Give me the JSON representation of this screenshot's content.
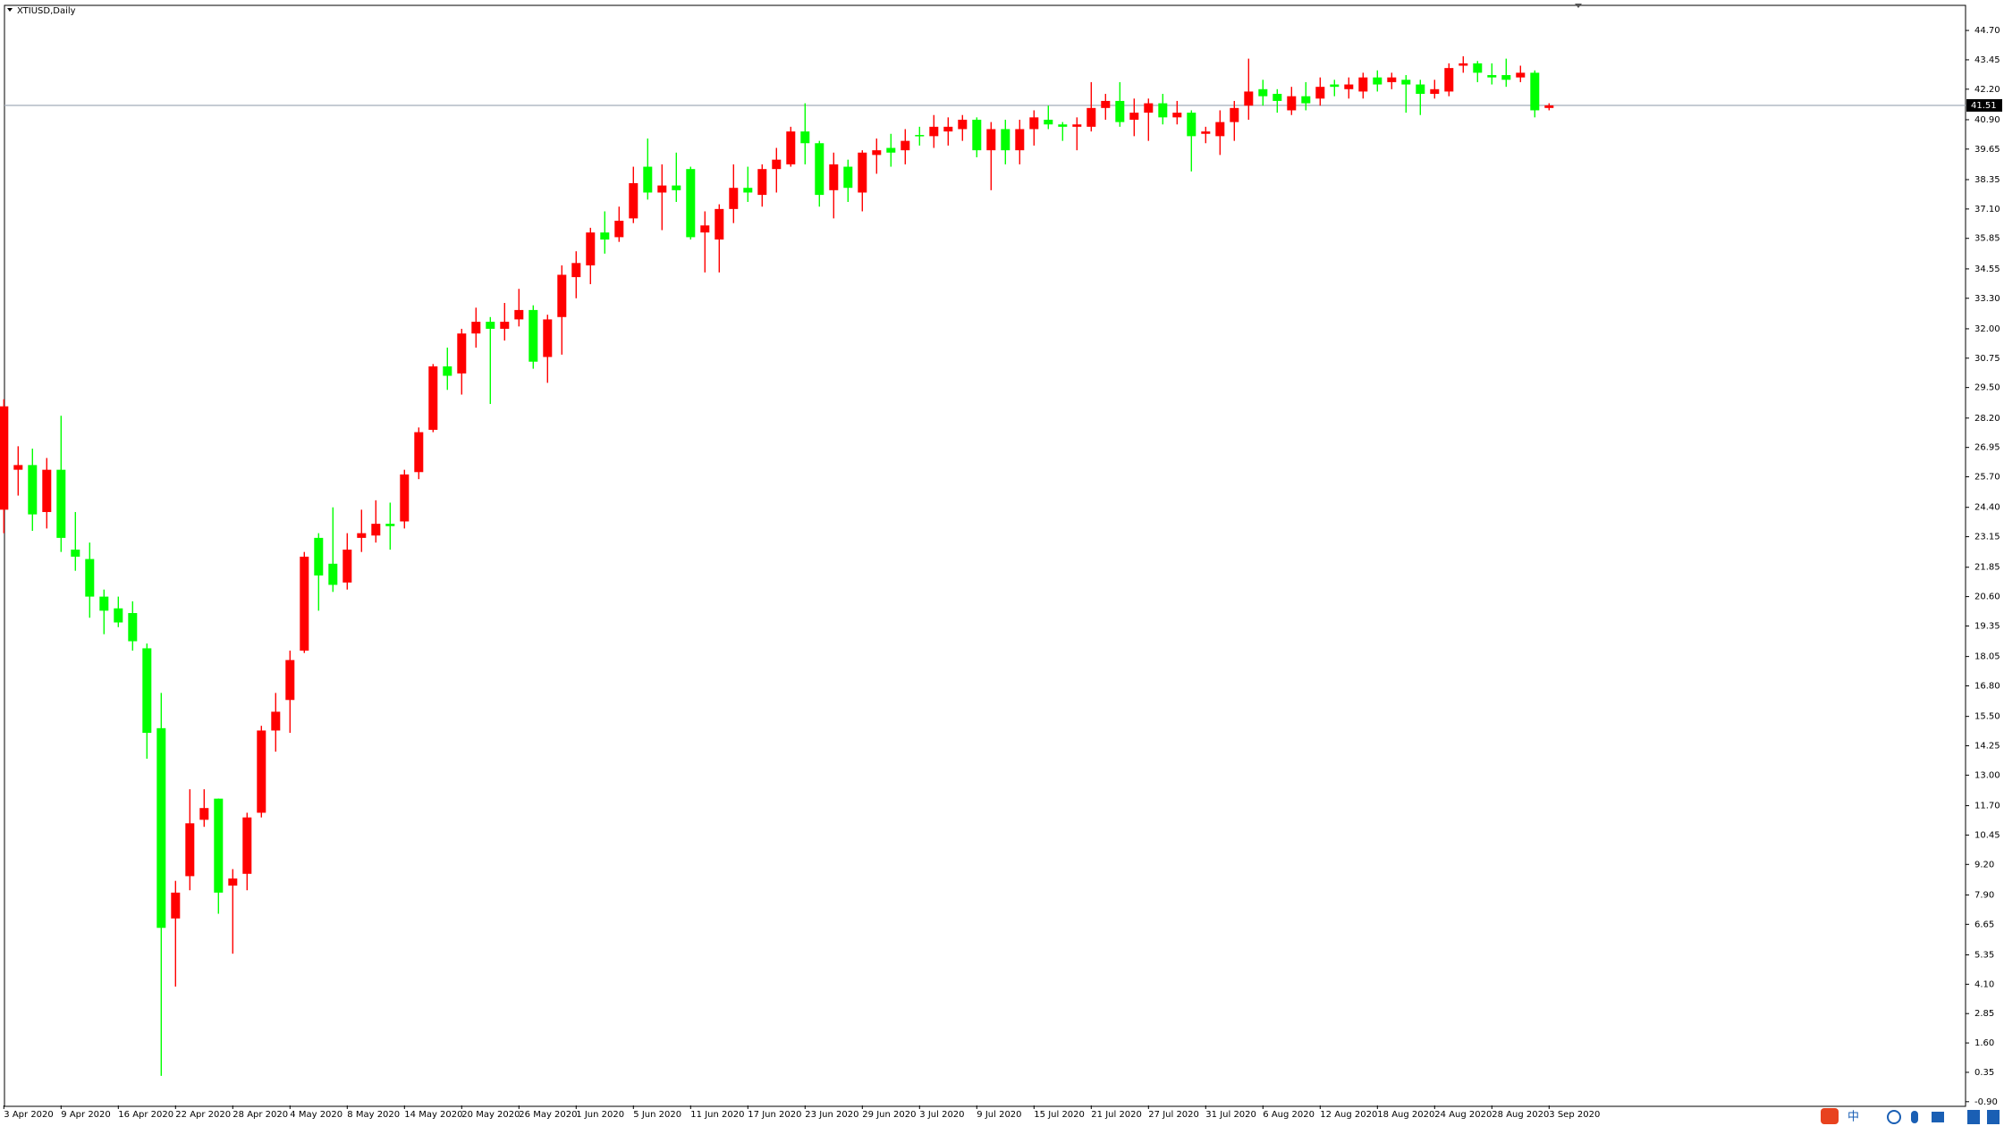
{
  "chart_data": {
    "type": "candlestick",
    "title": "XTIUSD,Daily",
    "categories": [
      "3 Apr 2020",
      null,
      null,
      null,
      "9 Apr 2020",
      null,
      null,
      null,
      "16 Apr 2020",
      null,
      null,
      null,
      "22 Apr 2020",
      null,
      null,
      null,
      "28 Apr 2020",
      null,
      null,
      null,
      "4 May 2020",
      null,
      null,
      null,
      "8 May 2020",
      null,
      null,
      null,
      "14 May 2020",
      null,
      null,
      null,
      "20 May 2020",
      null,
      null,
      null,
      "26 May 2020",
      null,
      null,
      null,
      "1 Jun 2020",
      null,
      null,
      null,
      "5 Jun 2020",
      null,
      null,
      null,
      "11 Jun 2020",
      null,
      null,
      null,
      "17 Jun 2020",
      null,
      null,
      null,
      "23 Jun 2020",
      null,
      null,
      null,
      "29 Jun 2020",
      null,
      null,
      null,
      "3 Jul 2020",
      null,
      null,
      null,
      "9 Jul 2020",
      null,
      null,
      null,
      "15 Jul 2020",
      null,
      null,
      null,
      "21 Jul 2020",
      null,
      null,
      null,
      "27 Jul 2020",
      null,
      null,
      null,
      "31 Jul 2020",
      null,
      null,
      null,
      "6 Aug 2020",
      null,
      null,
      null,
      "12 Aug 2020",
      null,
      null,
      null,
      "18 Aug 2020",
      null,
      null,
      null,
      "24 Aug 2020",
      null,
      null,
      null,
      "28 Aug 2020",
      null,
      null,
      null,
      "3 Sep 2020"
    ],
    "open": [
      24.3,
      26.0,
      26.2,
      24.2,
      26.0,
      22.6,
      22.2,
      20.6,
      20.1,
      19.9,
      18.4,
      15.0,
      6.9,
      8.7,
      11.1,
      12.0,
      8.3,
      8.8,
      11.4,
      14.9,
      16.2,
      18.3,
      23.1,
      22.0,
      21.2,
      23.1,
      23.2,
      23.7,
      23.8,
      25.9,
      27.7,
      30.4,
      30.1,
      31.8,
      32.3,
      32.0,
      32.4,
      32.8,
      30.8,
      32.5,
      34.2,
      34.7,
      36.1,
      35.9,
      36.7,
      38.9,
      37.8,
      38.1,
      38.8,
      36.1,
      35.8,
      37.1,
      38.0,
      37.7,
      38.8,
      39.0,
      40.4,
      39.9,
      37.9,
      38.9,
      37.8,
      39.4,
      39.7,
      39.6,
      40.25,
      40.2,
      40.4,
      40.5,
      40.9,
      39.6,
      40.5,
      39.6,
      40.5,
      40.9,
      40.7,
      40.6,
      40.6,
      41.4,
      41.7,
      40.9,
      41.2,
      41.6,
      41.0,
      41.2,
      40.3,
      40.2,
      40.8,
      41.5,
      42.2,
      42.0,
      41.3,
      41.9,
      41.8,
      42.4,
      42.2,
      42.1,
      42.7,
      42.5,
      42.6,
      42.4,
      42.0,
      42.1,
      43.2,
      43.3,
      42.8,
      42.8,
      42.7,
      42.9,
      41.4
    ],
    "high": [
      29.0,
      27.0,
      26.9,
      26.5,
      28.3,
      24.2,
      22.9,
      20.9,
      20.6,
      20.4,
      18.6,
      16.5,
      8.5,
      12.4,
      12.4,
      12.0,
      9.0,
      11.4,
      15.1,
      16.5,
      18.3,
      22.5,
      23.3,
      24.4,
      23.3,
      24.3,
      24.7,
      24.6,
      26.0,
      27.8,
      30.5,
      31.2,
      32.0,
      32.9,
      32.5,
      33.1,
      33.7,
      33.0,
      32.6,
      34.7,
      35.3,
      36.3,
      37.0,
      37.2,
      38.9,
      40.1,
      39.0,
      39.5,
      38.9,
      37.0,
      37.3,
      39.0,
      38.9,
      39.0,
      39.7,
      40.6,
      41.6,
      40.0,
      39.5,
      39.2,
      39.6,
      40.1,
      40.3,
      40.5,
      40.6,
      41.1,
      41.0,
      41.1,
      41.0,
      40.8,
      40.9,
      40.9,
      41.3,
      41.5,
      40.8,
      41.0,
      42.5,
      42.0,
      42.5,
      41.8,
      41.8,
      42.0,
      41.7,
      41.3,
      40.6,
      41.3,
      41.7,
      43.5,
      42.6,
      42.2,
      42.3,
      42.5,
      42.7,
      42.6,
      42.7,
      42.9,
      43.0,
      42.9,
      42.8,
      42.6,
      42.6,
      43.3,
      43.6,
      43.4,
      43.3,
      43.5,
      43.2,
      43.0,
      41.6
    ],
    "low": [
      23.3,
      24.9,
      23.4,
      23.5,
      22.5,
      21.7,
      19.7,
      19.0,
      19.3,
      18.3,
      13.7,
      0.2,
      4.0,
      8.1,
      10.8,
      7.1,
      5.4,
      8.1,
      11.2,
      14.0,
      14.8,
      18.2,
      20.0,
      20.8,
      20.9,
      22.5,
      22.9,
      22.6,
      23.5,
      25.6,
      27.6,
      29.4,
      29.2,
      31.2,
      28.8,
      31.5,
      32.1,
      30.3,
      29.7,
      30.9,
      33.3,
      33.9,
      35.2,
      35.7,
      36.5,
      37.5,
      36.2,
      37.4,
      35.8,
      34.4,
      34.4,
      36.5,
      37.4,
      37.2,
      37.8,
      38.9,
      39.0,
      37.2,
      36.7,
      37.4,
      37.0,
      38.6,
      38.9,
      39.0,
      39.8,
      39.7,
      39.8,
      40.0,
      39.3,
      37.9,
      39.0,
      39.0,
      39.8,
      40.5,
      40.0,
      39.6,
      40.4,
      40.9,
      40.6,
      40.2,
      40.0,
      40.7,
      40.7,
      38.7,
      39.9,
      39.4,
      40.0,
      40.9,
      41.5,
      41.2,
      41.1,
      41.3,
      41.5,
      41.9,
      41.8,
      41.8,
      42.1,
      42.2,
      41.2,
      41.1,
      41.8,
      41.9,
      42.9,
      42.5,
      42.4,
      42.3,
      42.5,
      41.0,
      41.3
    ],
    "close": [
      28.7,
      26.2,
      24.1,
      26.0,
      23.1,
      22.3,
      20.6,
      20.0,
      19.5,
      18.7,
      14.8,
      6.5,
      8.0,
      10.95,
      11.6,
      8.0,
      8.6,
      11.2,
      14.9,
      15.7,
      17.9,
      22.3,
      21.5,
      21.1,
      22.6,
      23.3,
      23.7,
      23.6,
      25.8,
      27.6,
      30.4,
      30.0,
      31.8,
      32.3,
      32.0,
      32.3,
      32.8,
      30.6,
      32.4,
      34.3,
      34.8,
      36.1,
      35.8,
      36.6,
      38.2,
      37.8,
      38.1,
      37.9,
      35.9,
      36.4,
      37.1,
      38.0,
      37.8,
      38.8,
      39.2,
      40.4,
      39.9,
      37.7,
      39.0,
      38.0,
      39.5,
      39.6,
      39.5,
      40.0,
      40.2,
      40.6,
      40.6,
      40.9,
      39.6,
      40.5,
      39.6,
      40.5,
      41.0,
      40.7,
      40.6,
      40.7,
      41.4,
      41.7,
      40.8,
      41.2,
      41.6,
      41.0,
      41.2,
      40.2,
      40.4,
      40.8,
      41.4,
      42.1,
      41.9,
      41.7,
      41.9,
      41.6,
      42.3,
      42.3,
      42.4,
      42.7,
      42.4,
      42.7,
      42.4,
      42.0,
      42.2,
      43.1,
      43.3,
      42.9,
      42.7,
      42.6,
      42.9,
      41.3,
      41.51
    ],
    "up_color": "#ff0000",
    "down_color": "#00ff00",
    "current_price": 41.51,
    "price_line_color": "#aab4bf",
    "ylim": [
      -1.06,
      45.73
    ],
    "yticks": [
      {
        "value": 44.7,
        "label": "44.70"
      },
      {
        "value": 43.45,
        "label": "43.45"
      },
      {
        "value": 42.2,
        "label": "42.20"
      },
      {
        "value": 40.9,
        "label": "40.90"
      },
      {
        "value": 39.65,
        "label": "39.65"
      },
      {
        "value": 38.35,
        "label": "38.35"
      },
      {
        "value": 37.1,
        "label": "37.10"
      },
      {
        "value": 35.85,
        "label": "35.85"
      },
      {
        "value": 34.55,
        "label": "34.55"
      },
      {
        "value": 33.3,
        "label": "33.30"
      },
      {
        "value": 32,
        "label": "32.00"
      },
      {
        "value": 30.75,
        "label": "30.75"
      },
      {
        "value": 29.5,
        "label": "29.50"
      },
      {
        "value": 28.2,
        "label": "28.20"
      },
      {
        "value": 26.95,
        "label": "26.95"
      },
      {
        "value": 25.7,
        "label": "25.70"
      },
      {
        "value": 24.4,
        "label": "24.40"
      },
      {
        "value": 23.15,
        "label": "23.15"
      },
      {
        "value": 21.85,
        "label": "21.85"
      },
      {
        "value": 20.6,
        "label": "20.60"
      },
      {
        "value": 19.35,
        "label": "19.35"
      },
      {
        "value": 18.05,
        "label": "18.05"
      },
      {
        "value": 16.8,
        "label": "16.80"
      },
      {
        "value": 15.5,
        "label": "15.50"
      },
      {
        "value": 14.25,
        "label": "14.25"
      },
      {
        "value": 13,
        "label": "13.00"
      },
      {
        "value": 11.7,
        "label": "11.70"
      },
      {
        "value": 10.45,
        "label": "10.45"
      },
      {
        "value": 9.2,
        "label": "9.20"
      },
      {
        "value": 7.9,
        "label": "7.90"
      },
      {
        "value": 6.65,
        "label": "6.65"
      },
      {
        "value": 5.35,
        "label": "5.35"
      },
      {
        "value": 4.1,
        "label": "4.10"
      },
      {
        "value": 2.85,
        "label": "2.85"
      },
      {
        "value": 1.6,
        "label": "1.60"
      },
      {
        "value": 0.35,
        "label": "0.35"
      },
      {
        "value": -0.9,
        "label": "-0.90"
      }
    ]
  },
  "taskbar": {
    "ime": "中"
  }
}
